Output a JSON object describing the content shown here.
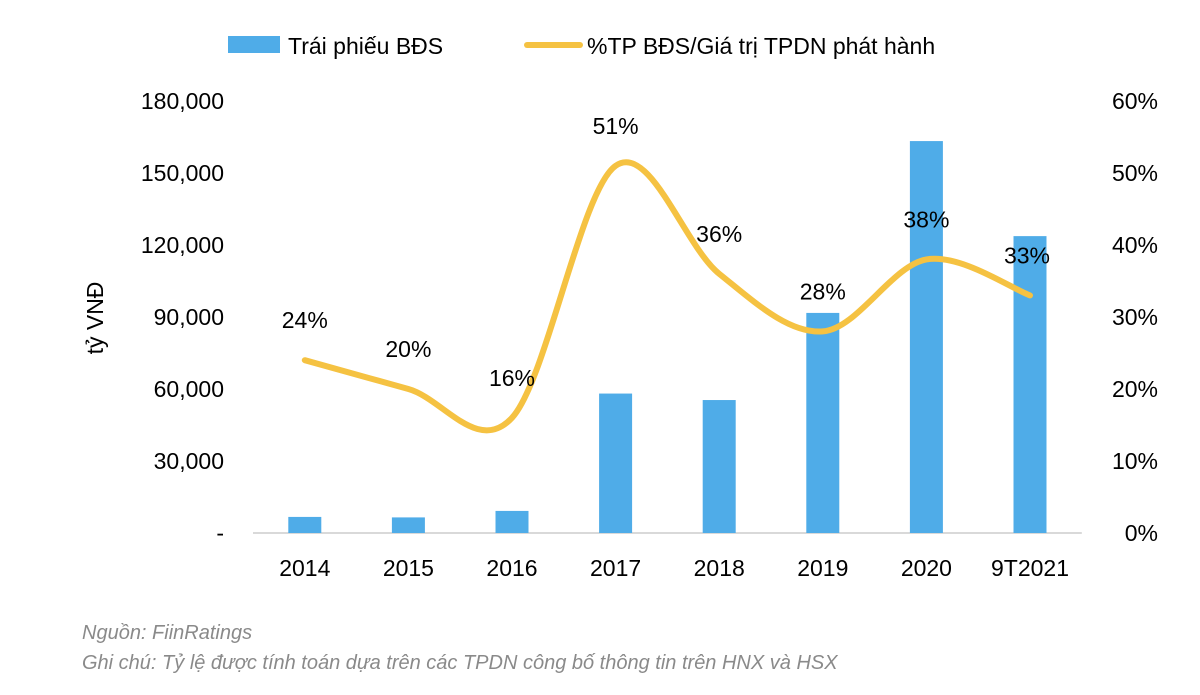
{
  "chart_data": {
    "type": "bar+line",
    "categories": [
      "2014",
      "2015",
      "2016",
      "2017",
      "2018",
      "2019",
      "2020",
      "9T2021"
    ],
    "series": [
      {
        "name": "Trái phiếu BĐS",
        "type": "bar",
        "axis": "left",
        "color": "#4FACE8",
        "values": [
          6700,
          6500,
          9200,
          58100,
          55400,
          91700,
          163300,
          123700
        ]
      },
      {
        "name": "%TP BĐS/Giá trị TPDN phát hành",
        "type": "line",
        "axis": "right",
        "color": "#F5C242",
        "smooth": true,
        "values": [
          24,
          20,
          16,
          51,
          36,
          28,
          38,
          33
        ],
        "data_labels": [
          "24%",
          "20%",
          "16%",
          "51%",
          "36%",
          "28%",
          "38%",
          "33%"
        ]
      }
    ],
    "ylabel": "tỷ VNĐ",
    "ylim": [
      0,
      180000
    ],
    "y_ticks": [
      "-",
      "30,000",
      "60,000",
      "90,000",
      "120,000",
      "150,000",
      "180,000"
    ],
    "y2lim": [
      0,
      60
    ],
    "y2_ticks": [
      "0%",
      "10%",
      "20%",
      "30%",
      "40%",
      "50%",
      "60%"
    ],
    "grid": false,
    "legend": "top"
  },
  "notes": {
    "source": "Nguồn: FiinRatings",
    "remark": "Ghi chú: Tỷ lệ được tính toán dựa trên các TPDN công bố thông tin trên HNX và HSX"
  }
}
